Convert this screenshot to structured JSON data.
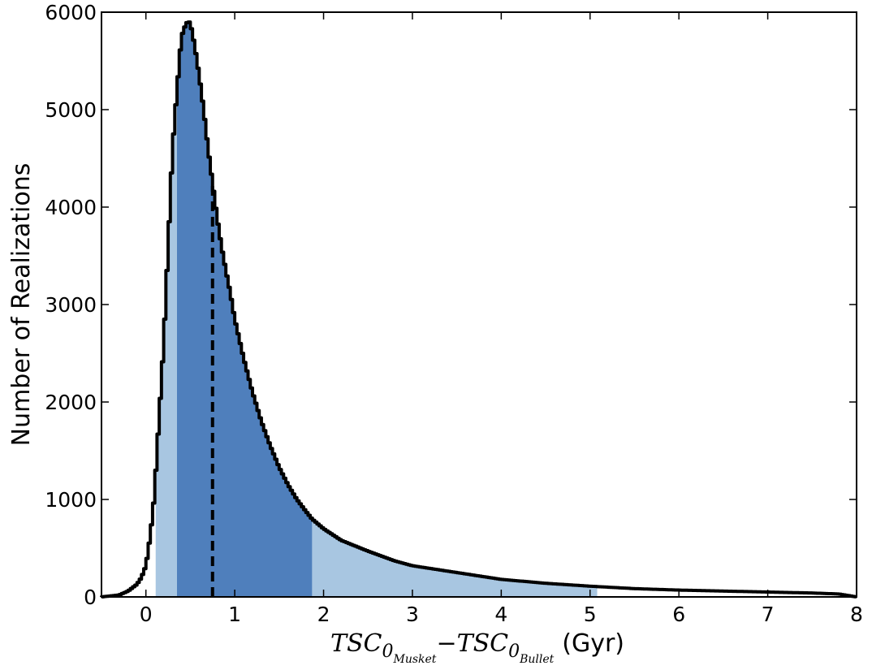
{
  "chart_data": {
    "type": "histogram",
    "xlabel_parts": {
      "term": "TSC",
      "sub": "0",
      "first_subsub": "Musket",
      "minus": "−",
      "second_subsub": "Bullet",
      "unit": "(Gyr)"
    },
    "ylabel": "Number of Realizations",
    "xlim": [
      -0.5,
      8
    ],
    "ylim": [
      0,
      6000
    ],
    "xticks": [
      "0",
      "1",
      "2",
      "3",
      "4",
      "5",
      "6",
      "7",
      "8"
    ],
    "yticks": [
      "0",
      "1000",
      "2000",
      "3000",
      "4000",
      "5000",
      "6000"
    ],
    "grid": false,
    "median": 0.75,
    "interval_68": [
      0.35,
      1.87
    ],
    "interval_95": [
      0.11,
      5.08
    ],
    "curve_x": [
      -0.5,
      -0.3,
      -0.2,
      -0.1,
      -0.05,
      0.0,
      0.03,
      0.05,
      0.08,
      0.1,
      0.12,
      0.15,
      0.2,
      0.25,
      0.3,
      0.35,
      0.4,
      0.45,
      0.48,
      0.5,
      0.52,
      0.55,
      0.6,
      0.65,
      0.7,
      0.75,
      0.8,
      0.85,
      0.9,
      0.95,
      1.0,
      1.1,
      1.2,
      1.3,
      1.4,
      1.5,
      1.6,
      1.7,
      1.8,
      1.87,
      2.0,
      2.2,
      2.5,
      2.8,
      3.0,
      3.5,
      4.0,
      4.5,
      5.0,
      5.5,
      6.0,
      6.5,
      7.0,
      7.5,
      7.8,
      8.0
    ],
    "curve_y": [
      0,
      20,
      60,
      130,
      200,
      320,
      500,
      640,
      880,
      1100,
      1420,
      1850,
      2600,
      3600,
      4600,
      5200,
      5750,
      5880,
      5910,
      5880,
      5800,
      5650,
      5350,
      5000,
      4600,
      4250,
      3900,
      3600,
      3350,
      3120,
      2850,
      2450,
      2100,
      1800,
      1550,
      1330,
      1150,
      1000,
      880,
      800,
      700,
      580,
      470,
      370,
      320,
      250,
      180,
      140,
      110,
      85,
      70,
      60,
      50,
      40,
      30,
      0
    ],
    "colors": {
      "interval_68_fill": "#4f7fbc",
      "interval_95_fill": "#a8c6e1",
      "curve": "#000000",
      "median_line": "#000000"
    }
  }
}
